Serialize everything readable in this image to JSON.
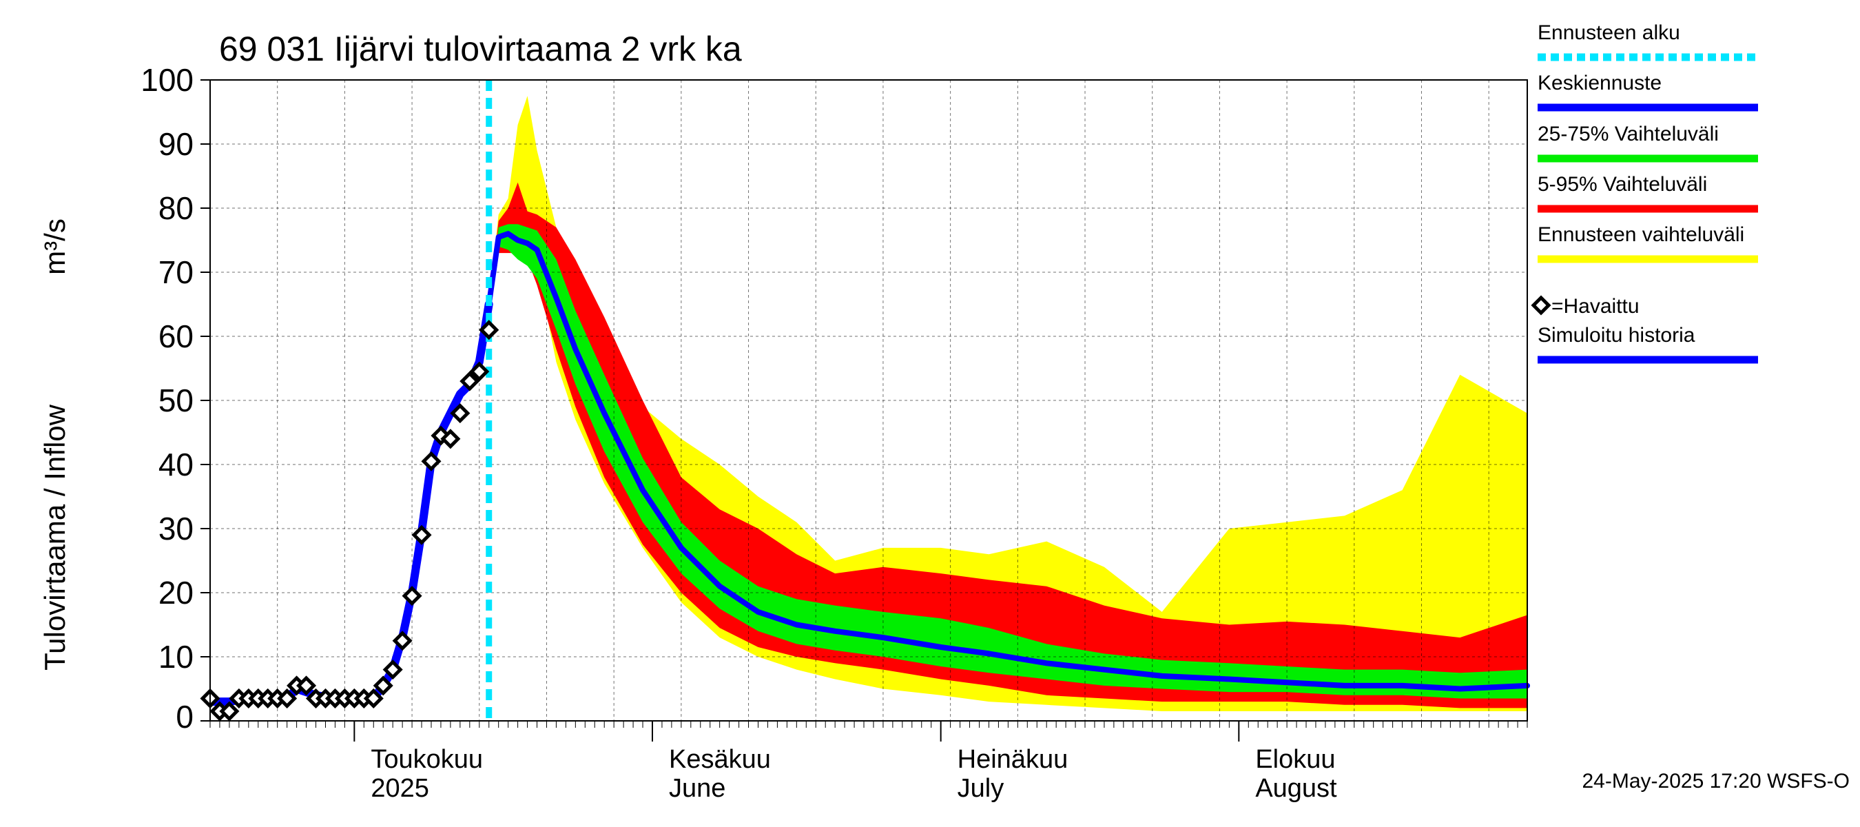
{
  "chart_data": {
    "type": "area",
    "title": "69 031 Iijärvi tulovirtaama 2 vrk ka",
    "ylabel": "Tulovirtaama / Inflow",
    "yunit": "m³/s",
    "ylim": [
      0,
      100
    ],
    "yticks": [
      "0",
      "10",
      "20",
      "30",
      "40",
      "50",
      "60",
      "70",
      "80",
      "90",
      "100"
    ],
    "xlim": [
      "2025-04-16",
      "2025-08-31"
    ],
    "xticks": [
      {
        "date": "2025-05-01",
        "label": "Toukokuu",
        "label2": "2025"
      },
      {
        "date": "2025-06-01",
        "label": "Kesäkuu",
        "label2": "June"
      },
      {
        "date": "2025-07-01",
        "label": "Heinäkuu",
        "label2": "July"
      },
      {
        "date": "2025-08-01",
        "label": "Elokuu",
        "label2": "August"
      }
    ],
    "forecast_start": "2025-05-15",
    "grid": true,
    "legend_position": "right",
    "legend": [
      {
        "label": "Ennusteen alku",
        "color": "#00e5ff",
        "style": "dashed"
      },
      {
        "label": "Keskiennuste",
        "color": "#0000ff"
      },
      {
        "label": "25-75% Vaihteluväli",
        "color": "#00ee00"
      },
      {
        "label": "5-95% Vaihteluväli",
        "color": "#ff0000"
      },
      {
        "label": "Ennusteen vaihteluväli",
        "color": "#ffff00"
      },
      {
        "label": "=Havaittu",
        "color": "#000000",
        "marker": "diamond"
      },
      {
        "label": "Simuloitu historia",
        "color": "#0000ff"
      }
    ],
    "colors": {
      "forecast_start": "#00e5ff",
      "median": "#0000ff",
      "band_25_75": "#00ee00",
      "band_5_95": "#ff0000",
      "band_full": "#ffff00",
      "observed": "#000000",
      "simulated": "#0000ff"
    },
    "observed": {
      "x": [
        "2025-04-16",
        "2025-04-17",
        "2025-04-18",
        "2025-04-19",
        "2025-04-20",
        "2025-04-21",
        "2025-04-22",
        "2025-04-23",
        "2025-04-24",
        "2025-04-25",
        "2025-04-26",
        "2025-04-27",
        "2025-04-28",
        "2025-04-29",
        "2025-04-30",
        "2025-05-01",
        "2025-05-02",
        "2025-05-03",
        "2025-05-04",
        "2025-05-05",
        "2025-05-06",
        "2025-05-07",
        "2025-05-08",
        "2025-05-09",
        "2025-05-10",
        "2025-05-11",
        "2025-05-12",
        "2025-05-13",
        "2025-05-14",
        "2025-05-15"
      ],
      "y": [
        3.5,
        1.5,
        1.5,
        3.5,
        3.5,
        3.5,
        3.5,
        3.5,
        3.5,
        5.5,
        5.5,
        3.5,
        3.5,
        3.5,
        3.5,
        3.5,
        3.5,
        3.5,
        5.5,
        8,
        12.5,
        19.5,
        29,
        40.5,
        44.5,
        44,
        48,
        53,
        54.5,
        61
      ]
    },
    "simulated_history": {
      "x": [
        "2025-04-16",
        "2025-04-18",
        "2025-04-20",
        "2025-04-22",
        "2025-04-24",
        "2025-04-25",
        "2025-04-27",
        "2025-04-29",
        "2025-05-01",
        "2025-05-03",
        "2025-05-04",
        "2025-05-05",
        "2025-05-06",
        "2025-05-07",
        "2025-05-08",
        "2025-05-09",
        "2025-05-10",
        "2025-05-11",
        "2025-05-12",
        "2025-05-13",
        "2025-05-14",
        "2025-05-15"
      ],
      "y": [
        3.0,
        3.0,
        3.5,
        3.5,
        3.5,
        5.0,
        4.0,
        3.5,
        3.5,
        3.5,
        5.5,
        8,
        13,
        20,
        29.5,
        40.5,
        45,
        48,
        51,
        52.5,
        56,
        65
      ]
    },
    "forecast": {
      "x": [
        "2025-05-15",
        "2025-05-16",
        "2025-05-17",
        "2025-05-18",
        "2025-05-19",
        "2025-05-20",
        "2025-05-22",
        "2025-05-24",
        "2025-05-27",
        "2025-05-31",
        "2025-06-04",
        "2025-06-08",
        "2025-06-12",
        "2025-06-16",
        "2025-06-20",
        "2025-06-25",
        "2025-07-01",
        "2025-07-06",
        "2025-07-12",
        "2025-07-18",
        "2025-07-24",
        "2025-07-31",
        "2025-08-06",
        "2025-08-12",
        "2025-08-18",
        "2025-08-24",
        "2025-08-31"
      ],
      "median": [
        65,
        75.5,
        76,
        75,
        74.5,
        73.5,
        66,
        58,
        48,
        36,
        27,
        21,
        17,
        15,
        14,
        13,
        11.5,
        10.5,
        9,
        8,
        7,
        6.5,
        6,
        5.5,
        5.5,
        5,
        5.5
      ],
      "p25": [
        65,
        74,
        73.5,
        72,
        71,
        69,
        61,
        52.5,
        42,
        31,
        23,
        17.5,
        14,
        12,
        11,
        10,
        8.5,
        7.5,
        6.5,
        5.5,
        5,
        4.5,
        4.5,
        4,
        4,
        3.5,
        3.5
      ],
      "p75": [
        65,
        77,
        77.5,
        77.5,
        77,
        76.5,
        72,
        64,
        54,
        41,
        31,
        25,
        21,
        19,
        18,
        17,
        16,
        14.5,
        12,
        10.5,
        9.5,
        9,
        8.5,
        8,
        8,
        7.5,
        8
      ],
      "p5": [
        65,
        73,
        73,
        73,
        72,
        68,
        58,
        49,
        38,
        27.5,
        20,
        14.5,
        11.5,
        10,
        9,
        8,
        6.5,
        5.5,
        4,
        3.5,
        3,
        3,
        3,
        2.5,
        2.5,
        2,
        2
      ],
      "p95": [
        65,
        78,
        80,
        84,
        79.5,
        79,
        77,
        72,
        63,
        50,
        38,
        33,
        30,
        26,
        23,
        24,
        23,
        22,
        21,
        18,
        16,
        15,
        15.5,
        15,
        14,
        13,
        16.5
      ],
      "min": [
        65,
        74,
        74.5,
        74,
        73,
        71,
        56,
        47,
        37,
        27,
        18.5,
        13,
        10,
        8,
        6.5,
        5,
        4,
        3,
        2.5,
        2,
        1.5,
        1.5,
        1.5,
        1.5,
        1.5,
        1.5,
        1.5
      ],
      "max": [
        65,
        79,
        81.5,
        93,
        97.5,
        89,
        77,
        68,
        58,
        49,
        44,
        40,
        35,
        31,
        25,
        27,
        27,
        26,
        28,
        24,
        17,
        30,
        31,
        32,
        36,
        54,
        48
      ]
    }
  },
  "timestamp": "24-May-2025 17:20 WSFS-O"
}
